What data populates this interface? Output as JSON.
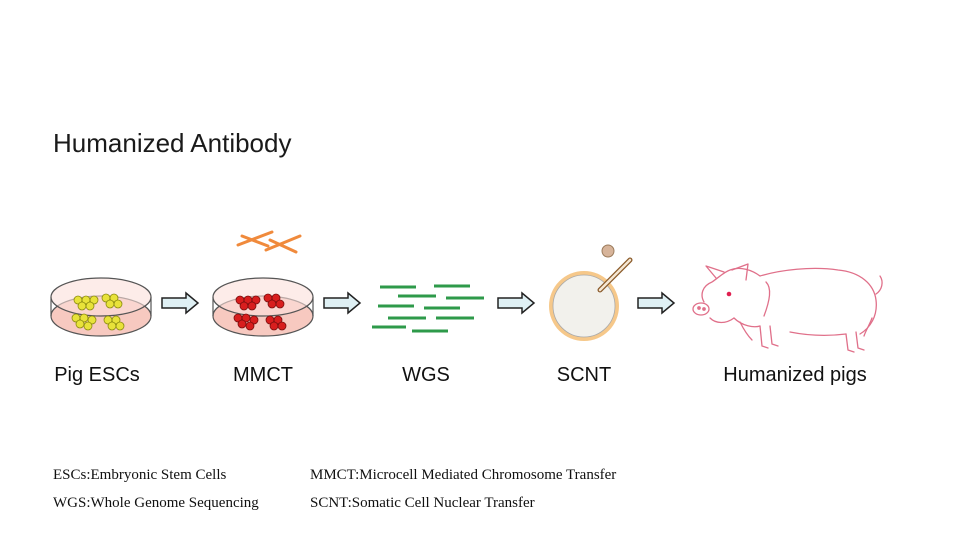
{
  "title": "Humanized Antibody",
  "steps": [
    {
      "label": "Pig ESCs",
      "icon": "petri-dish-yellow-cells-icon"
    },
    {
      "label": "MMCT",
      "icon": "petri-dish-red-cells-icon"
    },
    {
      "label": "WGS",
      "icon": "sequence-reads-icon"
    },
    {
      "label": "SCNT",
      "icon": "oocyte-injection-icon"
    },
    {
      "label": "Humanized pigs",
      "icon": "pig-icon"
    }
  ],
  "legend": [
    {
      "text": "ESCs:Embryonic Stem Cells"
    },
    {
      "text": "MMCT:Microcell Mediated Chromosome Transfer"
    },
    {
      "text": "WGS:Whole Genome Sequencing"
    },
    {
      "text": "SCNT:Somatic Cell Nuclear Transfer"
    }
  ],
  "colors": {
    "dish_fill": "#f7c9c0",
    "yellow_cells": "#e8e23a",
    "red_cells": "#d81e1e",
    "chromosome": "#f08a3c",
    "reads": "#2e9a4a",
    "arrow_fill": "#dff0f4",
    "oocyte_ring": "#f6c88a",
    "pig_line": "#e0708a"
  }
}
